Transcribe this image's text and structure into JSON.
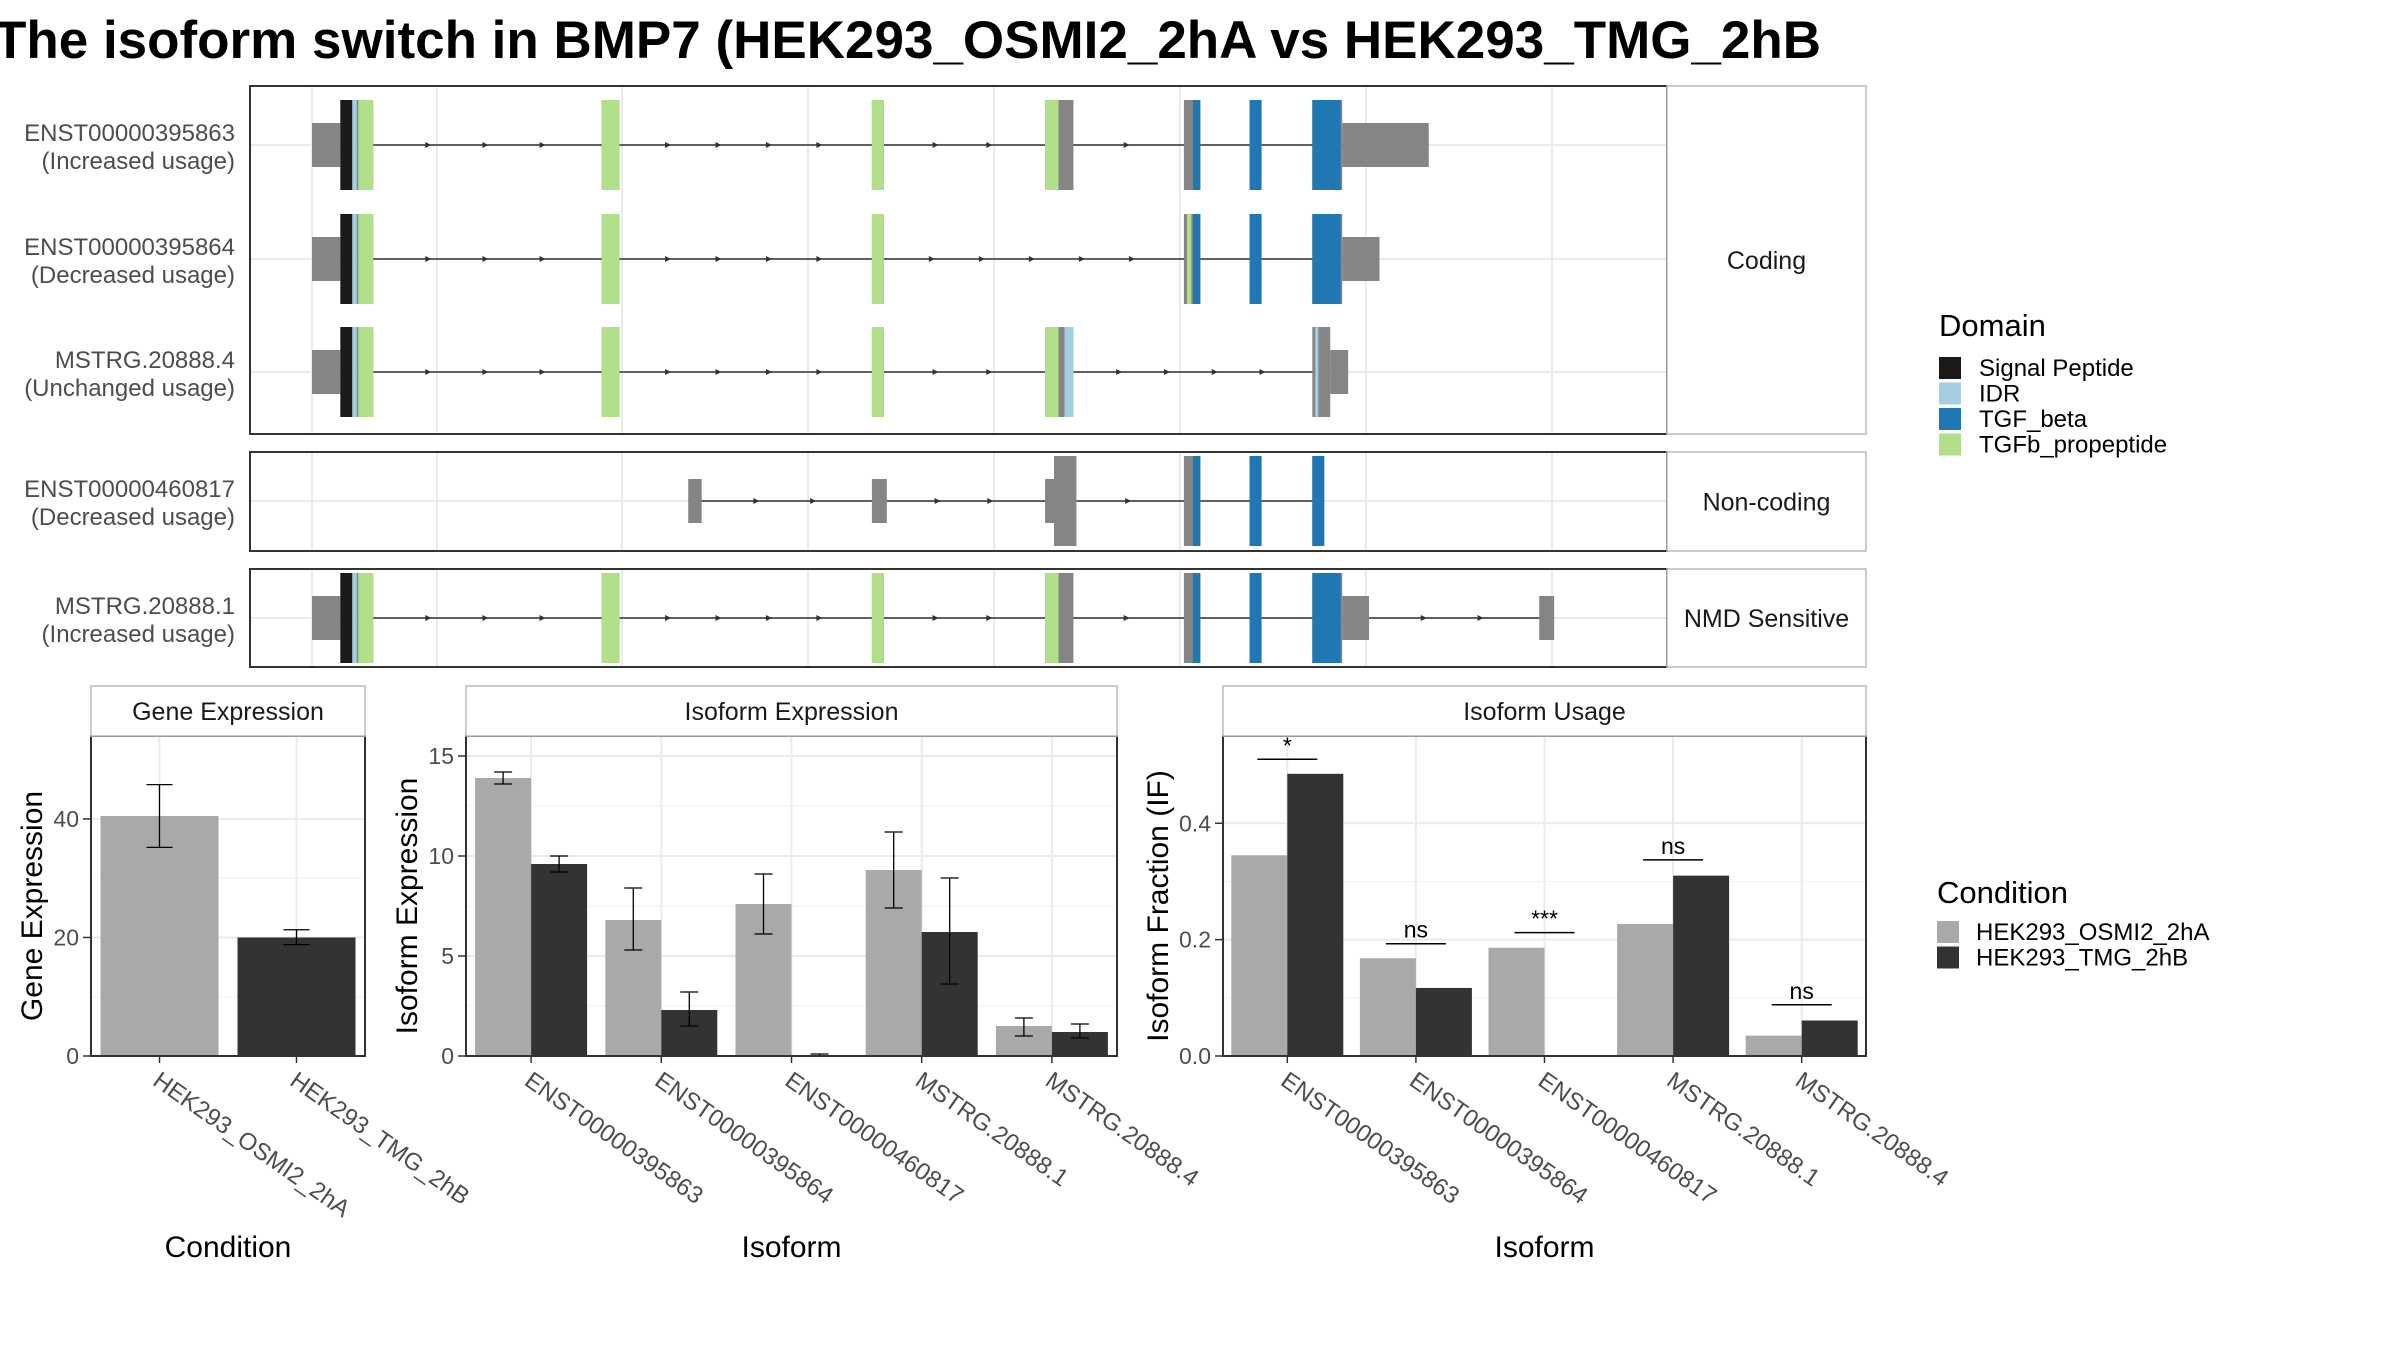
{
  "title": "The isoform switch in BMP7 (HEK293_OSMI2_2hA vs HEK293_TMG_2hB",
  "colors": {
    "panel_border": "#333333",
    "strip_fill": "#ffffff",
    "strip_border": "#bbbbbb",
    "grid": "#ebebeb",
    "exon": "#858585",
    "intron": "#333333",
    "cond_a": "#a9a9a9",
    "cond_b": "#333333"
  },
  "legends": {
    "domain": {
      "title": "Domain",
      "items": [
        {
          "label": "Signal Peptide",
          "color": "#1a1a1a"
        },
        {
          "label": "IDR",
          "color": "#a6cee3"
        },
        {
          "label": "TGF_beta",
          "color": "#1f78b4"
        },
        {
          "label": "TGFb_propeptide",
          "color": "#b2df8a"
        }
      ]
    },
    "condition": {
      "title": "Condition",
      "items": [
        {
          "label": "HEK293_OSMI2_2hA",
          "color": "#a9a9a9"
        },
        {
          "label": "HEK293_TMG_2hB",
          "color": "#333333"
        }
      ]
    }
  },
  "transcript_panels": [
    {
      "strip": "Coding",
      "tracks": [
        {
          "id": "ENST00000395863",
          "usage": "(Increased usage)",
          "exons": [
            [
              0,
              19,
              "s"
            ],
            [
              19,
              27,
              "t"
            ],
            [
              27,
              41,
              "t"
            ],
            [
              194,
              206,
              "t"
            ],
            [
              375,
              383,
              "t"
            ],
            [
              491,
              510,
              "t"
            ],
            [
              584,
              595,
              "t"
            ],
            [
              628,
              636,
              "t"
            ],
            [
              670,
              690,
              "t"
            ],
            [
              690,
              748,
              "s"
            ]
          ],
          "domains": [
            [
              19,
              27,
              "Signal Peptide"
            ],
            [
              27,
              30,
              "IDR"
            ],
            [
              31,
              41,
              "TGFb_propeptide"
            ],
            [
              194,
              206,
              "TGFb_propeptide"
            ],
            [
              375,
              383,
              "TGFb_propeptide"
            ],
            [
              491,
              500,
              "TGFb_propeptide"
            ],
            [
              590,
              595,
              "TGF_beta"
            ],
            [
              628,
              636,
              "TGF_beta"
            ],
            [
              670,
              689,
              "TGF_beta"
            ]
          ]
        },
        {
          "id": "ENST00000395864",
          "usage": "(Decreased usage)",
          "exons": [
            [
              0,
              19,
              "s"
            ],
            [
              19,
              27,
              "t"
            ],
            [
              27,
              41,
              "t"
            ],
            [
              194,
              206,
              "t"
            ],
            [
              375,
              383,
              "t"
            ],
            [
              584,
              595,
              "t"
            ],
            [
              628,
              636,
              "t"
            ],
            [
              670,
              690,
              "t"
            ],
            [
              690,
              715,
              "s"
            ]
          ],
          "domains": [
            [
              19,
              27,
              "Signal Peptide"
            ],
            [
              27,
              30,
              "IDR"
            ],
            [
              31,
              41,
              "TGFb_propeptide"
            ],
            [
              194,
              206,
              "TGFb_propeptide"
            ],
            [
              375,
              383,
              "TGFb_propeptide"
            ],
            [
              586,
              589,
              "TGFb_propeptide"
            ],
            [
              590,
              595,
              "TGF_beta"
            ],
            [
              628,
              636,
              "TGF_beta"
            ],
            [
              670,
              689,
              "TGF_beta"
            ]
          ]
        },
        {
          "id": "MSTRG.20888.4",
          "usage": "(Unchanged usage)",
          "exons": [
            [
              0,
              19,
              "s"
            ],
            [
              19,
              27,
              "t"
            ],
            [
              27,
              41,
              "t"
            ],
            [
              194,
              206,
              "t"
            ],
            [
              375,
              383,
              "t"
            ],
            [
              491,
              510,
              "t"
            ],
            [
              670,
              682,
              "t"
            ],
            [
              682,
              694,
              "s"
            ]
          ],
          "domains": [
            [
              19,
              27,
              "Signal Peptide"
            ],
            [
              27,
              30,
              "IDR"
            ],
            [
              31,
              41,
              "TGFb_propeptide"
            ],
            [
              194,
              206,
              "TGFb_propeptide"
            ],
            [
              375,
              383,
              "TGFb_propeptide"
            ],
            [
              491,
              500,
              "TGFb_propeptide"
            ],
            [
              504,
              510,
              "IDR"
            ],
            [
              672,
              674,
              "IDR"
            ]
          ]
        }
      ]
    },
    {
      "strip": "Non-coding",
      "tracks": [
        {
          "id": "ENST00000460817",
          "usage": "(Decreased usage)",
          "exons": [
            [
              252,
              261,
              "s"
            ],
            [
              375,
              385,
              "s"
            ],
            [
              491,
              497,
              "s"
            ],
            [
              497,
              512,
              "t"
            ],
            [
              584,
              595,
              "t"
            ],
            [
              628,
              636,
              "t"
            ],
            [
              670,
              678,
              "t"
            ]
          ],
          "domains": [
            [
              590,
              595,
              "TGF_beta"
            ],
            [
              628,
              636,
              "TGF_beta"
            ],
            [
              670,
              678,
              "TGF_beta"
            ]
          ]
        }
      ]
    },
    {
      "strip": "NMD Sensitive",
      "tracks": [
        {
          "id": "MSTRG.20888.1",
          "usage": "(Increased usage)",
          "exons": [
            [
              0,
              19,
              "s"
            ],
            [
              19,
              27,
              "t"
            ],
            [
              27,
              41,
              "t"
            ],
            [
              194,
              206,
              "t"
            ],
            [
              375,
              383,
              "t"
            ],
            [
              491,
              510,
              "t"
            ],
            [
              584,
              595,
              "t"
            ],
            [
              628,
              636,
              "t"
            ],
            [
              670,
              690,
              "t"
            ],
            [
              690,
              708,
              "s"
            ],
            [
              822,
              832,
              "s"
            ]
          ],
          "domains": [
            [
              19,
              27,
              "Signal Peptide"
            ],
            [
              27,
              30,
              "IDR"
            ],
            [
              31,
              41,
              "TGFb_propeptide"
            ],
            [
              194,
              206,
              "TGFb_propeptide"
            ],
            [
              375,
              383,
              "TGFb_propeptide"
            ],
            [
              491,
              500,
              "TGFb_propeptide"
            ],
            [
              590,
              595,
              "TGF_beta"
            ],
            [
              628,
              636,
              "TGF_beta"
            ],
            [
              670,
              689,
              "TGF_beta"
            ]
          ]
        }
      ]
    }
  ],
  "chart_data": [
    {
      "type": "bar",
      "title": "Gene Expression",
      "xlabel": "Condition",
      "ylabel": "Gene Expression",
      "ylim": [
        0,
        54
      ],
      "yticks": [
        0,
        20,
        40
      ],
      "categories": [
        "HEK293_OSMI2_2hA",
        "HEK293_TMG_2hB"
      ],
      "series": [
        {
          "condition": "HEK293_OSMI2_2hA",
          "values": [
            40.5,
            null
          ],
          "err_low": [
            35.2,
            null
          ],
          "err_high": [
            45.8,
            null
          ]
        },
        {
          "condition": "HEK293_TMG_2hB",
          "values": [
            null,
            20.0
          ],
          "err_low": [
            null,
            18.8
          ],
          "err_high": [
            null,
            21.3
          ]
        }
      ]
    },
    {
      "type": "bar",
      "title": "Isoform Expression",
      "xlabel": "Isoform",
      "ylabel": "Isoform Expression",
      "ylim": [
        0,
        16
      ],
      "yticks": [
        0,
        5,
        10,
        15
      ],
      "categories": [
        "ENST00000395863",
        "ENST00000395864",
        "ENST00000460817",
        "MSTRG.20888.1",
        "MSTRG.20888.4"
      ],
      "series": [
        {
          "condition": "HEK293_OSMI2_2hA",
          "values": [
            13.9,
            6.8,
            7.6,
            9.3,
            1.5
          ],
          "err_low": [
            13.6,
            5.3,
            6.1,
            7.4,
            1.0
          ],
          "err_high": [
            14.2,
            8.4,
            9.1,
            11.2,
            1.9
          ]
        },
        {
          "condition": "HEK293_TMG_2hB",
          "values": [
            9.6,
            2.3,
            0.05,
            6.2,
            1.2
          ],
          "err_low": [
            9.2,
            1.5,
            0.0,
            3.6,
            0.9
          ],
          "err_high": [
            10.0,
            3.2,
            0.1,
            8.9,
            1.6
          ]
        }
      ]
    },
    {
      "type": "bar",
      "title": "Isoform Usage",
      "xlabel": "Isoform",
      "ylabel": "Isoform Fraction (IF)",
      "ylim": [
        0,
        0.55
      ],
      "yticks": [
        0.0,
        0.2,
        0.4
      ],
      "ytick_labels": [
        "0.0",
        "0.2",
        "0.4"
      ],
      "categories": [
        "ENST00000395863",
        "ENST00000395864",
        "ENST00000460817",
        "MSTRG.20888.1",
        "MSTRG.20888.4"
      ],
      "series": [
        {
          "condition": "HEK293_OSMI2_2hA",
          "values": [
            0.345,
            0.168,
            0.186,
            0.227,
            0.035
          ]
        },
        {
          "condition": "HEK293_TMG_2hB",
          "values": [
            0.485,
            0.117,
            0.0,
            0.31,
            0.061
          ]
        }
      ],
      "significance": [
        "*",
        "ns",
        "***",
        "ns",
        "ns"
      ],
      "significance_y": [
        0.51,
        0.193,
        0.212,
        0.337,
        0.088
      ]
    }
  ]
}
